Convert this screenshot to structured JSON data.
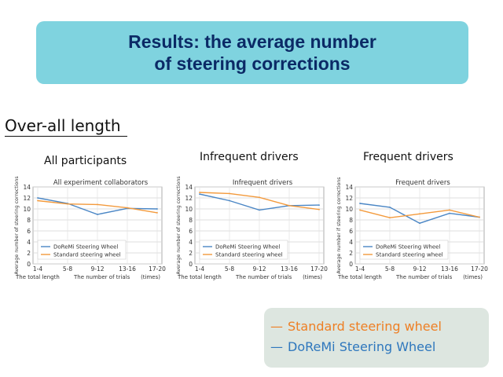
{
  "title": {
    "line1": "Results: the average number",
    "line2": "of steering corrections"
  },
  "section_heading": "Over-all length",
  "panel_labels": [
    "All participants",
    "Infrequent drivers",
    "Frequent drivers"
  ],
  "colors": {
    "doremi": "#4a86c5",
    "standard": "#f39a3c",
    "title_bg": "#7fd3df",
    "title_text": "#0b2a66",
    "legend_bg": "#dde6e0",
    "legend_standard_text": "#ee7f24",
    "legend_doremi_text": "#2e77bd"
  },
  "legend": {
    "standard_dash": "—",
    "standard_label": "Standard steering wheel",
    "doremi_dash": "—",
    "doremi_label": "DoReMi Steering Wheel"
  },
  "chart_data": [
    {
      "type": "line",
      "title": "All experiment collaborators",
      "ylabel": "Average number of steering corrections",
      "xlabel_left": "The total length",
      "xlabel_mid": "The number of trials",
      "xlabel_unit": "(times)",
      "categories": [
        "1-4",
        "5-8",
        "9-12",
        "13-16",
        "17-20"
      ],
      "ylim": [
        0,
        14
      ],
      "yticks": [
        0,
        2,
        4,
        6,
        8,
        10,
        12,
        14
      ],
      "legend_position": "bottom-left",
      "series": [
        {
          "name": "DoReMi Steering Wheel",
          "values": [
            12.0,
            11.0,
            9.0,
            10.1,
            10.0
          ]
        },
        {
          "name": "Standard steering wheel",
          "values": [
            11.5,
            10.9,
            10.8,
            10.2,
            9.3
          ]
        }
      ]
    },
    {
      "type": "line",
      "title": "Infrequent drivers",
      "ylabel": "Average number of steering corrections",
      "xlabel_left": "The total length",
      "xlabel_mid": "The number of trials",
      "xlabel_unit": "(times)",
      "categories": [
        "1-4",
        "5-8",
        "9-12",
        "13-16",
        "17-20"
      ],
      "ylim": [
        0,
        14
      ],
      "yticks": [
        0,
        2,
        4,
        6,
        8,
        10,
        12,
        14
      ],
      "legend_position": "bottom-left",
      "series": [
        {
          "name": "DoReMi Steering Wheel",
          "values": [
            12.7,
            11.5,
            9.8,
            10.6,
            10.7
          ]
        },
        {
          "name": "Standard steering wheel",
          "values": [
            13.0,
            12.8,
            12.1,
            10.6,
            9.9
          ]
        }
      ]
    },
    {
      "type": "line",
      "title": "Frequent drivers",
      "ylabel": "Average number if steering corrections",
      "xlabel_left": "The total length",
      "xlabel_mid": "The number of trials",
      "xlabel_unit": "(times)",
      "categories": [
        "1-4",
        "5-8",
        "9-12",
        "13-16",
        "17-20"
      ],
      "ylim": [
        0,
        14
      ],
      "yticks": [
        0,
        2,
        4,
        6,
        8,
        10,
        12,
        14
      ],
      "legend_position": "bottom-left",
      "series": [
        {
          "name": "DoReMi Steering Wheel",
          "values": [
            11.0,
            10.3,
            7.4,
            9.2,
            8.5
          ]
        },
        {
          "name": "Standard steering wheel",
          "values": [
            9.8,
            8.4,
            9.1,
            9.8,
            8.5
          ]
        }
      ]
    }
  ]
}
